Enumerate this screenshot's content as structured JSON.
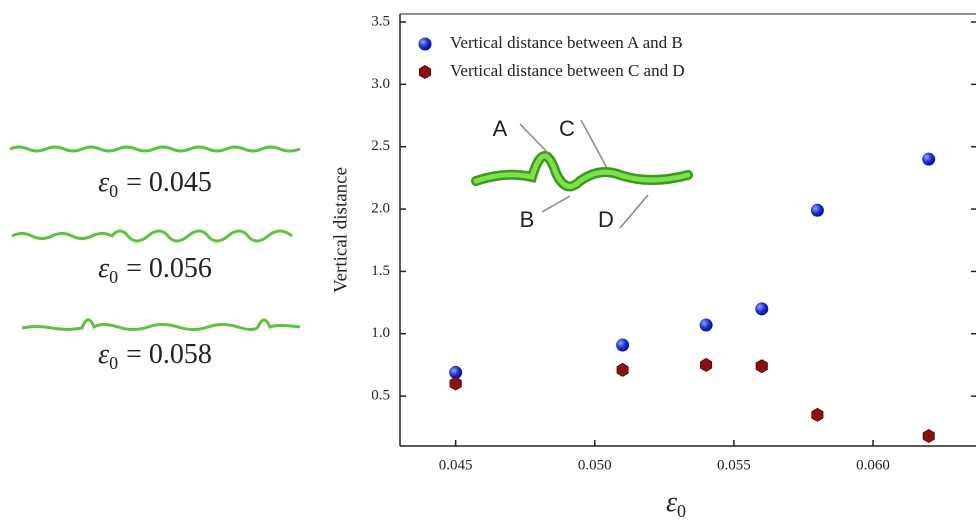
{
  "chart_data": {
    "type": "scatter",
    "xlabel": {
      "symbol": "ε",
      "subscript": "0"
    },
    "ylabel": "Vertical distance",
    "annotations": [
      "A",
      "B",
      "C",
      "D"
    ],
    "panel_labels": [
      {
        "symbol": "ε",
        "subscript": "0",
        "text": "= 0.045"
      },
      {
        "symbol": "ε",
        "subscript": "0",
        "text": "= 0.056"
      },
      {
        "symbol": "ε",
        "subscript": "0",
        "text": "= 0.058"
      }
    ],
    "xlim": [
      0.043,
      0.0637
    ],
    "ylim": [
      0.1,
      3.5
    ],
    "xticks": [
      0.045,
      {
        "value": 0.05,
        "label": "0.050"
      },
      0.055,
      {
        "value": 0.06,
        "label": "0.060"
      }
    ],
    "yticks": [
      0.5,
      {
        "value": 1,
        "label": "1.0"
      },
      1.5,
      {
        "value": 2,
        "label": "2.0"
      },
      2.5,
      {
        "value": 3,
        "label": "3.0"
      },
      3.5
    ],
    "legend": "upper left",
    "series": [
      {
        "name": "Vertical distance between A and B",
        "color": "#2233dd",
        "marker": "circle",
        "x": [
          0.045,
          0.051,
          0.054,
          0.056,
          0.058,
          0.062
        ],
        "values": [
          0.69,
          0.91,
          1.07,
          1.2,
          1.99,
          2.4
        ]
      },
      {
        "name": "Vertical distance between C and D",
        "color": "#8b1010",
        "marker": "hexagon",
        "x": [
          0.045,
          0.051,
          0.054,
          0.056,
          0.058,
          0.062
        ],
        "values": [
          0.6,
          0.71,
          0.75,
          0.74,
          0.35,
          0.18
        ]
      }
    ]
  }
}
